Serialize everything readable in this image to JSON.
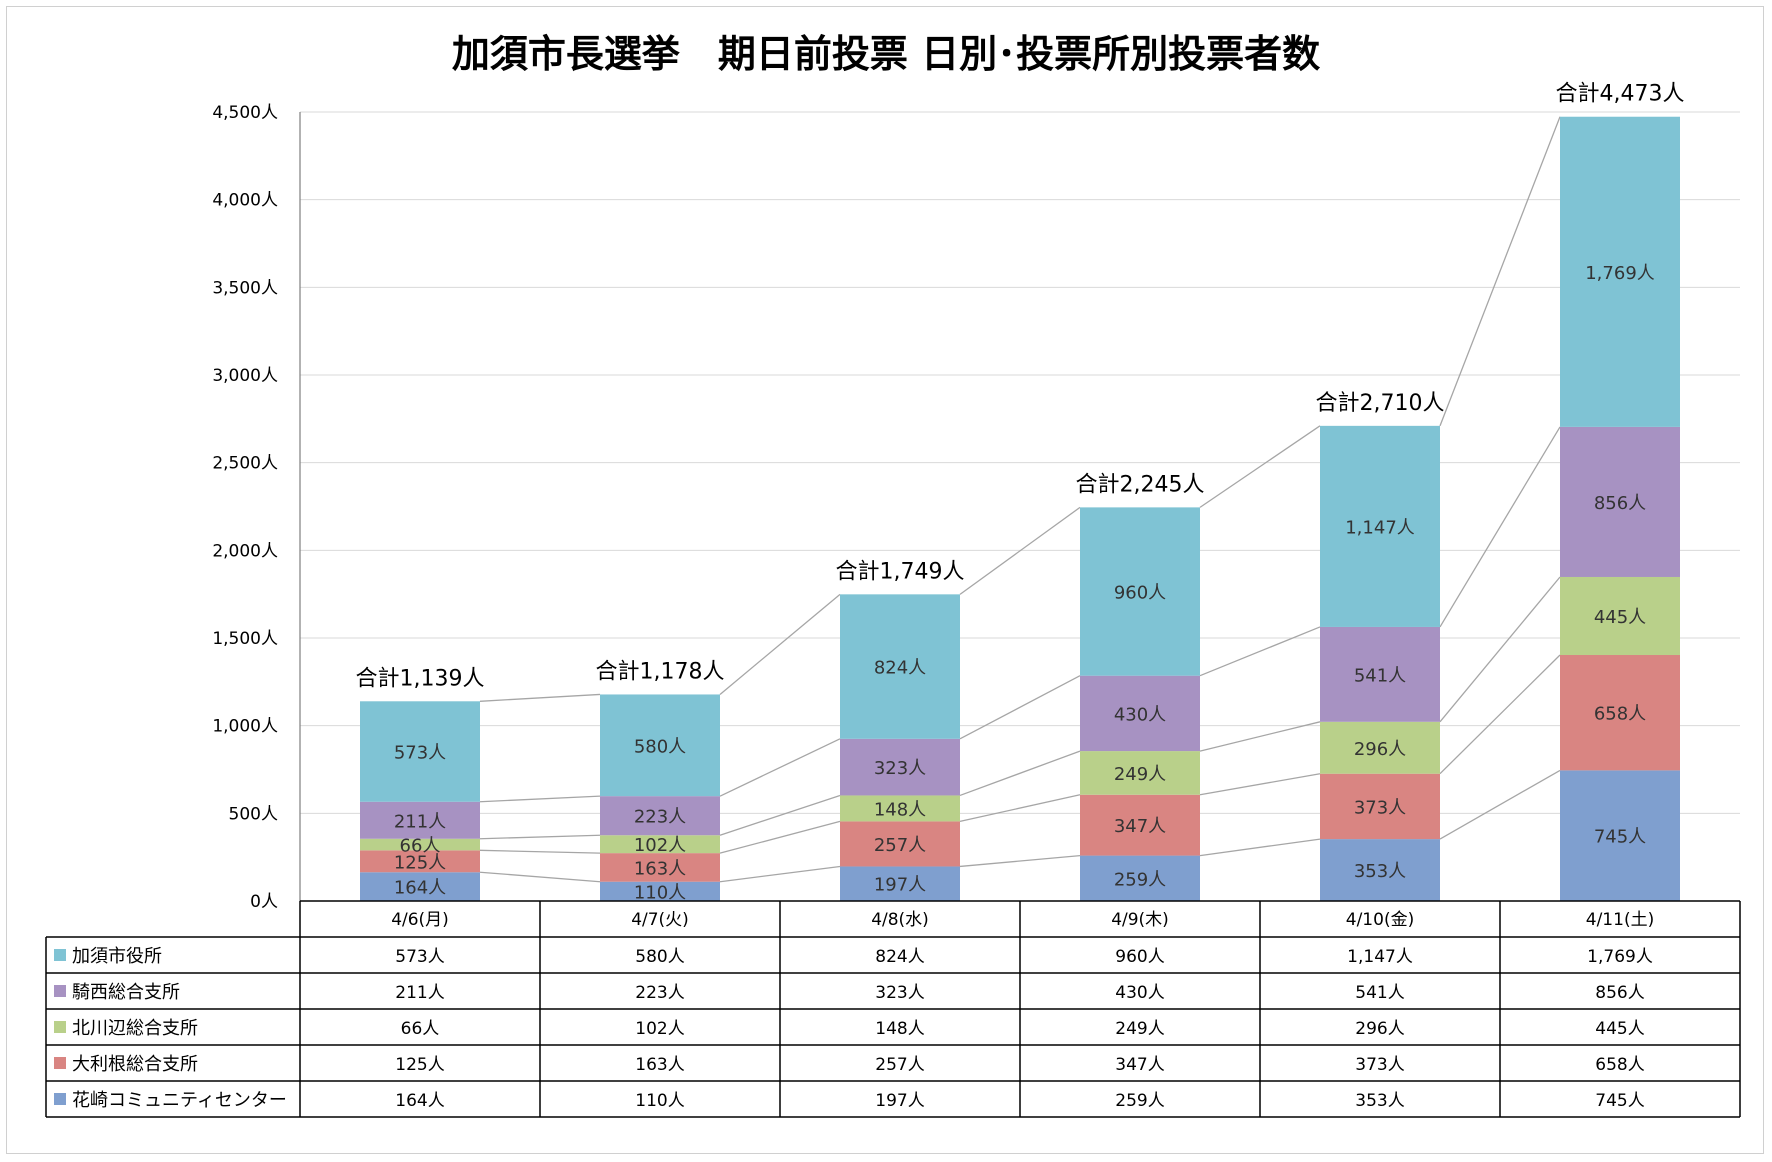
{
  "chart_data": {
    "type": "bar",
    "stacked": true,
    "title": "加須市長選挙　期日前投票 日別･投票所別投票者数",
    "unit": "人",
    "categories": [
      "4/6(月)",
      "4/7(火)",
      "4/8(水)",
      "4/9(木)",
      "4/10(金)",
      "4/11(土)"
    ],
    "ylim": [
      0,
      4500
    ],
    "yticks": [
      0,
      500,
      1000,
      1500,
      2000,
      2500,
      3000,
      3500,
      4000,
      4500
    ],
    "ytick_labels": [
      "0人",
      "500人",
      "1,000人",
      "1,500人",
      "2,000人",
      "2,500人",
      "3,000人",
      "3,500人",
      "4,000人",
      "4,500人"
    ],
    "grid": true,
    "series_lines": true,
    "series": [
      {
        "name": "花崎コミュニティセンター",
        "color": "#7f9fcf",
        "values": [
          164,
          110,
          197,
          259,
          353,
          745
        ],
        "labels": [
          "164人",
          "110人",
          "197人",
          "259人",
          "353人",
          "745人"
        ]
      },
      {
        "name": "大利根総合支所",
        "color": "#d98582",
        "values": [
          125,
          163,
          257,
          347,
          373,
          658
        ],
        "labels": [
          "125人",
          "163人",
          "257人",
          "347人",
          "373人",
          "658人"
        ]
      },
      {
        "name": "北川辺総合支所",
        "color": "#b9d08a",
        "values": [
          66,
          102,
          148,
          249,
          296,
          445
        ],
        "labels": [
          "66人",
          "102人",
          "148人",
          "249人",
          "296人",
          "445人"
        ]
      },
      {
        "name": "騎西総合支所",
        "color": "#a792c2",
        "values": [
          211,
          223,
          323,
          430,
          541,
          856
        ],
        "labels": [
          "211人",
          "223人",
          "323人",
          "430人",
          "541人",
          "856人"
        ]
      },
      {
        "name": "加須市役所",
        "color": "#7fc3d4",
        "values": [
          573,
          580,
          824,
          960,
          1147,
          1769
        ],
        "labels": [
          "573人",
          "580人",
          "824人",
          "960人",
          "1,147人",
          "1,769人"
        ]
      }
    ],
    "totals": [
      1139,
      1178,
      1749,
      2245,
      2710,
      4473
    ],
    "total_labels": [
      "合計1,139人",
      "合計1,178人",
      "合計1,749人",
      "合計2,245人",
      "合計2,710人",
      "合計4,473人"
    ],
    "table_row_order": [
      "加須市役所",
      "騎西総合支所",
      "北川辺総合支所",
      "大利根総合支所",
      "花崎コミュニティセンター"
    ]
  }
}
